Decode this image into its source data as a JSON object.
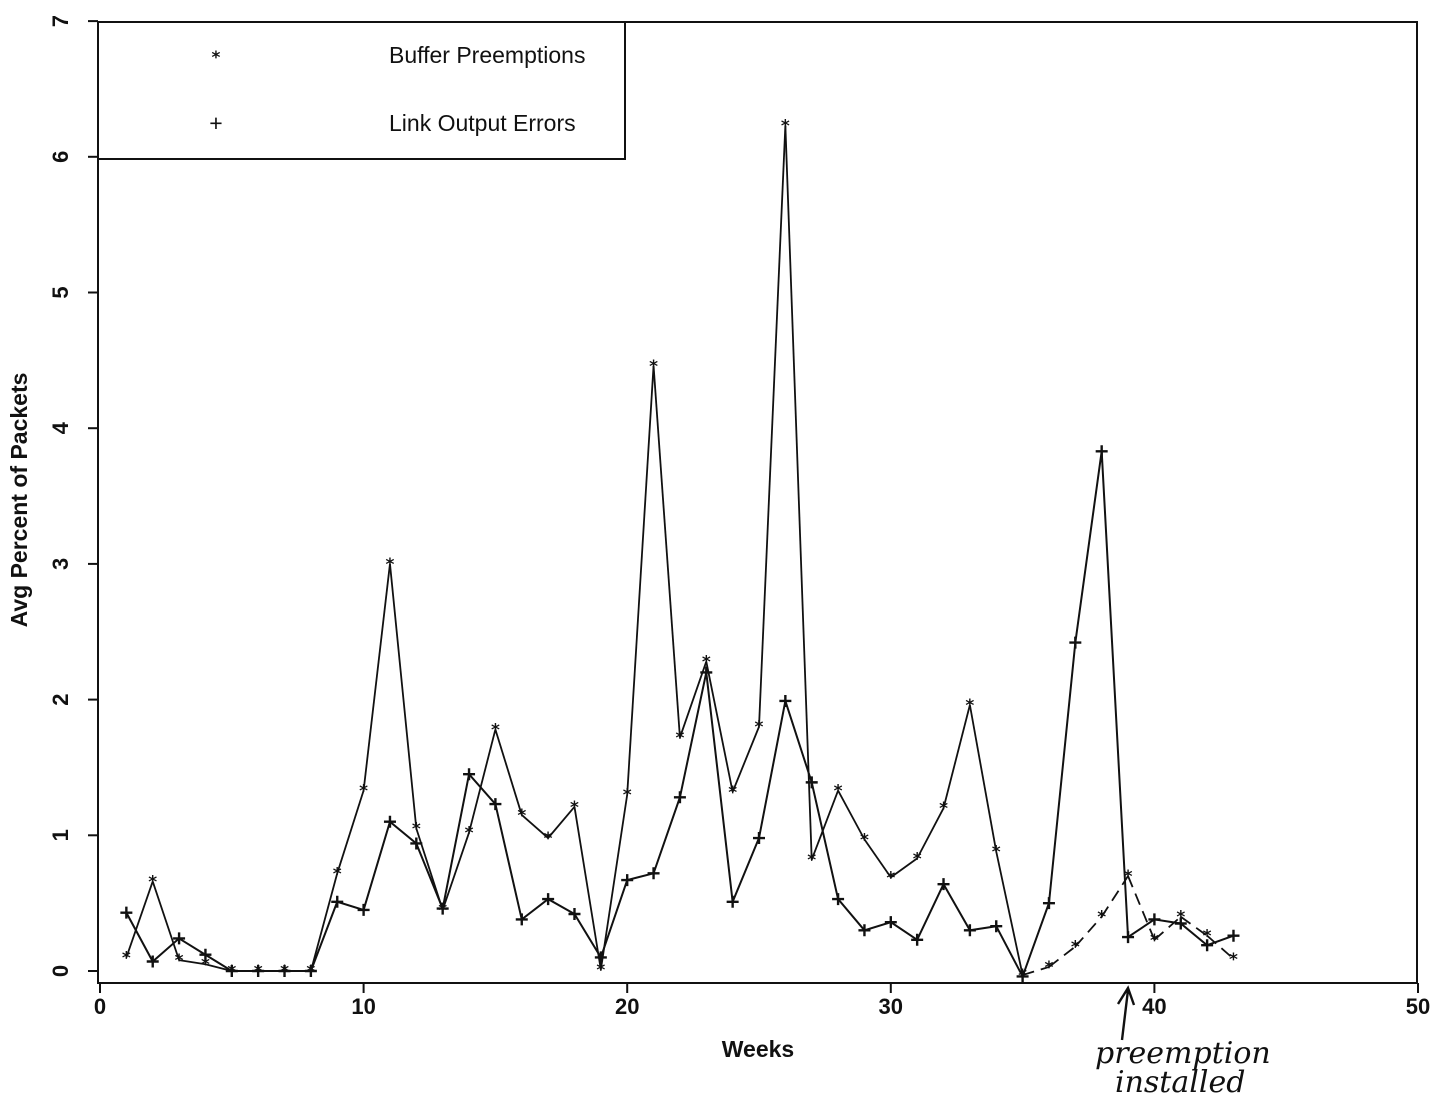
{
  "chart_data": {
    "type": "line",
    "title": "",
    "xlabel": "Weeks",
    "ylabel": "Avg Percent of Packets",
    "xlim": [
      0,
      50
    ],
    "ylim": [
      0,
      7
    ],
    "xticks": [
      "0",
      "10",
      "20",
      "30",
      "40",
      "50"
    ],
    "yticks": [
      "0",
      "1",
      "2",
      "3",
      "4",
      "5",
      "6",
      "7"
    ],
    "grid": false,
    "legend": "top-left",
    "series": [
      {
        "name": "Buffer Preemptions",
        "marker": "star",
        "symbol": "*",
        "line": "solid, dashed from week 35",
        "x": [
          1,
          2,
          3,
          4,
          5,
          6,
          7,
          8,
          9,
          10,
          11,
          12,
          13,
          14,
          15,
          16,
          17,
          18,
          19,
          20,
          21,
          22,
          23,
          24,
          25,
          26,
          27,
          28,
          29,
          30,
          31,
          32,
          33,
          34,
          35,
          36,
          37,
          38,
          39,
          40,
          41,
          42,
          43
        ],
        "values": [
          0.1,
          0.66,
          0.08,
          0.05,
          0,
          0,
          0,
          0,
          0.72,
          1.33,
          3.0,
          1.05,
          0.45,
          1.02,
          1.78,
          1.15,
          0.98,
          1.21,
          0.01,
          1.3,
          4.46,
          1.72,
          2.28,
          1.32,
          1.8,
          6.23,
          0.82,
          1.33,
          0.97,
          0.69,
          0.83,
          1.2,
          1.96,
          0.88,
          -0.03,
          0.03,
          0.18,
          0.4,
          0.7,
          0.23,
          0.4,
          0.26,
          0.09
        ]
      },
      {
        "name": "Link Output Errors",
        "marker": "plus",
        "symbol": "+",
        "line": "solid",
        "x": [
          1,
          2,
          3,
          4,
          5,
          6,
          7,
          8,
          9,
          10,
          11,
          12,
          13,
          14,
          15,
          16,
          17,
          18,
          19,
          20,
          21,
          22,
          23,
          24,
          25,
          26,
          27,
          28,
          29,
          30,
          31,
          32,
          33,
          34,
          35,
          36,
          37,
          38,
          39,
          40,
          41,
          42,
          43
        ],
        "values": [
          0.43,
          0.07,
          0.24,
          0.12,
          0,
          0,
          0,
          0,
          0.51,
          0.45,
          1.1,
          0.94,
          0.46,
          1.45,
          1.23,
          0.38,
          0.53,
          0.42,
          0.1,
          0.67,
          0.72,
          1.28,
          2.2,
          0.51,
          0.98,
          1.99,
          1.39,
          0.53,
          0.3,
          0.36,
          0.23,
          0.64,
          0.3,
          0.33,
          -0.04,
          0.5,
          2.42,
          3.83,
          0.25,
          0.38,
          0.35,
          0.19,
          0.26
        ]
      }
    ],
    "annotations": [
      {
        "text_line1": "preemption",
        "text_line2": "installed",
        "x": 39,
        "y": 0
      }
    ]
  },
  "colors": {
    "ink": "#111111",
    "background": "#ffffff"
  }
}
